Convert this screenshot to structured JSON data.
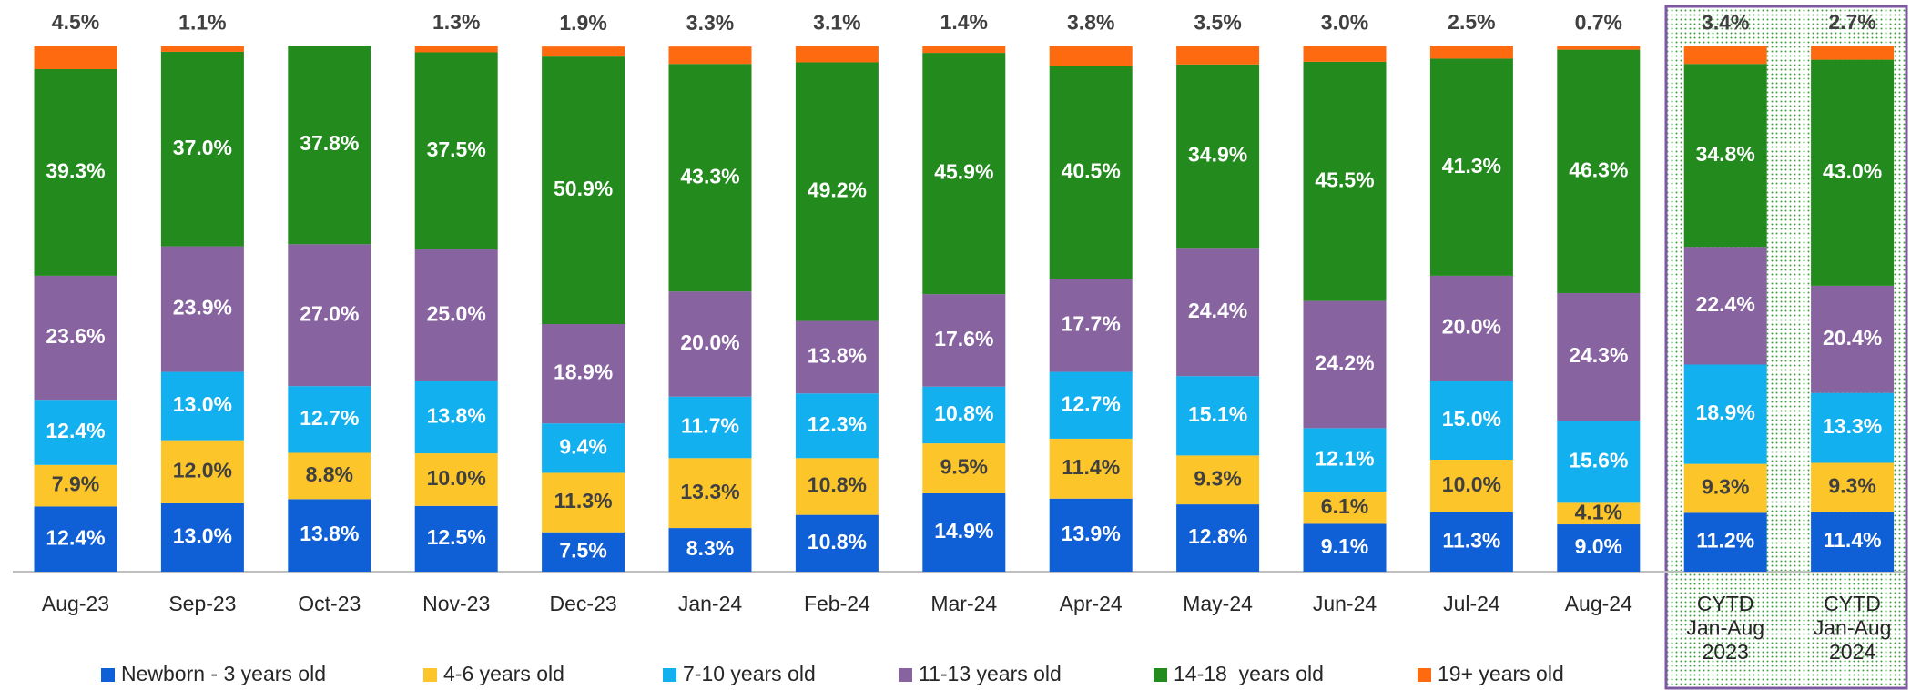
{
  "chart_data": {
    "type": "stacked_bar",
    "categories": [
      "Aug-23",
      "Sep-23",
      "Oct-23",
      "Nov-23",
      "Dec-23",
      "Jan-24",
      "Feb-24",
      "Mar-24",
      "Apr-24",
      "May-24",
      "Jun-24",
      "Jul-24",
      "Aug-24",
      "CYTD\nJan-Aug\n2023",
      "CYTD\nJan-Aug\n2024"
    ],
    "series": [
      {
        "name": "Newborn - 3 years old",
        "color": "#0f5fd7",
        "values": [
          12.4,
          13.0,
          13.8,
          12.5,
          7.5,
          8.3,
          10.8,
          14.9,
          13.9,
          12.8,
          9.1,
          11.3,
          9.0,
          11.2,
          11.4
        ],
        "value_labels": [
          "12.4%",
          "13.0%",
          "13.8%",
          "12.5%",
          "7.5%",
          "8.3%",
          "10.8%",
          "14.9%",
          "13.9%",
          "12.8%",
          "9.1%",
          "11.3%",
          "9.0%",
          "11.2%",
          "11.4%"
        ]
      },
      {
        "name": "4-6 years old",
        "color": "#fcc52a",
        "values": [
          7.9,
          12.0,
          8.8,
          10.0,
          11.3,
          13.3,
          10.8,
          9.5,
          11.4,
          9.3,
          6.1,
          10.0,
          4.1,
          9.3,
          9.3
        ],
        "value_labels": [
          "7.9%",
          "12.0%",
          "8.8%",
          "10.0%",
          "11.3%",
          "13.3%",
          "10.8%",
          "9.5%",
          "11.4%",
          "9.3%",
          "6.1%",
          "10.0%",
          "4.1%",
          "9.3%",
          "9.3%"
        ]
      },
      {
        "name": "7-10 years old",
        "color": "#12b0ef",
        "values": [
          12.4,
          13.0,
          12.7,
          13.8,
          9.4,
          11.7,
          12.3,
          10.8,
          12.7,
          15.1,
          12.1,
          15.0,
          15.6,
          18.9,
          13.3
        ],
        "value_labels": [
          "12.4%",
          "13.0%",
          "12.7%",
          "13.8%",
          "9.4%",
          "11.7%",
          "12.3%",
          "10.8%",
          "12.7%",
          "15.1%",
          "12.1%",
          "15.0%",
          "15.6%",
          "18.9%",
          "13.3%"
        ]
      },
      {
        "name": "11-13 years old",
        "color": "#8763a0",
        "values": [
          23.6,
          23.9,
          27.0,
          25.0,
          18.9,
          20.0,
          13.8,
          17.6,
          17.7,
          24.4,
          24.2,
          20.0,
          24.3,
          22.4,
          20.4
        ],
        "value_labels": [
          "23.6%",
          "23.9%",
          "27.0%",
          "25.0%",
          "18.9%",
          "20.0%",
          "13.8%",
          "17.6%",
          "17.7%",
          "24.4%",
          "24.2%",
          "20.0%",
          "24.3%",
          "22.4%",
          "20.4%"
        ]
      },
      {
        "name": "14-18  years old",
        "color": "#238b1e",
        "values": [
          39.3,
          37.0,
          37.8,
          37.5,
          50.9,
          43.3,
          49.2,
          45.9,
          40.5,
          34.9,
          45.5,
          41.3,
          46.3,
          34.8,
          43.0
        ],
        "value_labels": [
          "39.3%",
          "37.0%",
          "37.8%",
          "37.5%",
          "50.9%",
          "43.3%",
          "49.2%",
          "45.9%",
          "40.5%",
          "34.9%",
          "45.5%",
          "41.3%",
          "46.3%",
          "34.8%",
          "43.0%"
        ]
      },
      {
        "name": "19+ years old",
        "color": "#fd6a0f",
        "values": [
          4.5,
          1.1,
          null,
          1.3,
          1.9,
          3.3,
          3.1,
          1.4,
          3.8,
          3.5,
          3.0,
          2.5,
          0.7,
          3.4,
          2.7
        ],
        "value_labels": [
          "4.5%",
          "1.1%",
          null,
          "1.3%",
          "1.9%",
          "3.3%",
          "3.1%",
          "1.4%",
          "3.8%",
          "3.5%",
          "3.0%",
          "2.5%",
          "0.7%",
          "3.4%",
          "2.7%"
        ]
      }
    ]
  }
}
